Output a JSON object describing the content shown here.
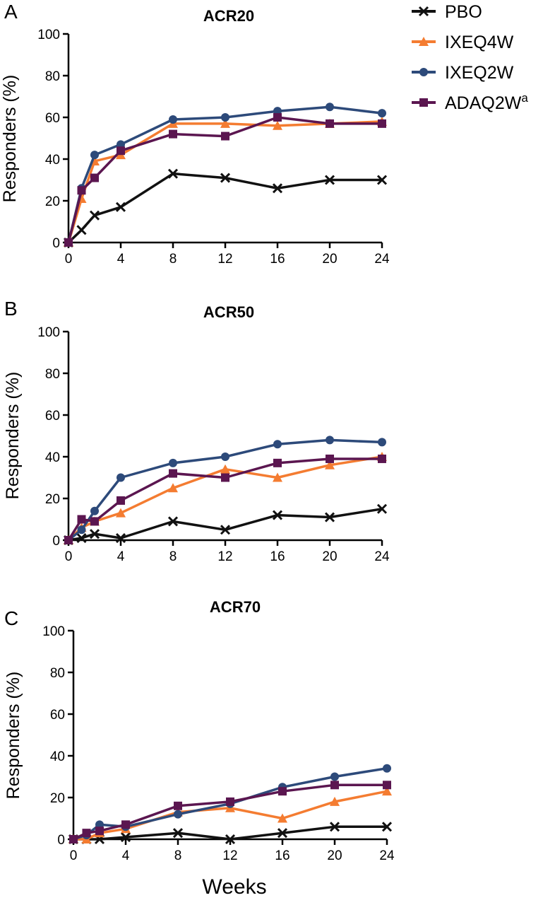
{
  "legend": {
    "items": [
      {
        "label": "PBO",
        "sup": "",
        "color": "#111111",
        "marker": "x"
      },
      {
        "label": "IXEQ4W",
        "sup": "",
        "color": "#f47c31",
        "marker": "triangle"
      },
      {
        "label": "IXEQ2W",
        "sup": "",
        "color": "#2d4a7a",
        "marker": "circle"
      },
      {
        "label": "ADAQ2W",
        "sup": "a",
        "color": "#5b1650",
        "marker": "square"
      }
    ]
  },
  "x_axis_label": "Weeks",
  "chart_data": [
    {
      "type": "line",
      "panel": "A",
      "title": "ACR20",
      "ylabel": "Responders (%)",
      "xlabel": "",
      "ylim": [
        0,
        100
      ],
      "yticks": [
        0,
        20,
        40,
        60,
        80,
        100
      ],
      "xlim": [
        0,
        24
      ],
      "xticks": [
        0,
        4,
        8,
        12,
        16,
        20,
        24
      ],
      "x": [
        0,
        1,
        2,
        4,
        8,
        12,
        16,
        20,
        24
      ],
      "series": [
        {
          "name": "PBO",
          "values": [
            0,
            6,
            13,
            17,
            33,
            31,
            26,
            30,
            30
          ]
        },
        {
          "name": "IXEQ4W",
          "values": [
            0,
            21,
            39,
            42,
            57,
            57,
            56,
            57,
            58
          ]
        },
        {
          "name": "IXEQ2W",
          "values": [
            0,
            26,
            42,
            47,
            59,
            60,
            63,
            65,
            62
          ]
        },
        {
          "name": "ADAQ2W",
          "values": [
            0,
            25,
            31,
            44,
            52,
            51,
            60,
            57,
            57
          ]
        }
      ]
    },
    {
      "type": "line",
      "panel": "B",
      "title": "ACR50",
      "ylabel": "Responders (%)",
      "xlabel": "",
      "ylim": [
        0,
        100
      ],
      "yticks": [
        0,
        20,
        40,
        60,
        80,
        100
      ],
      "xlim": [
        0,
        24
      ],
      "xticks": [
        0,
        4,
        8,
        12,
        16,
        20,
        24
      ],
      "x": [
        0,
        1,
        2,
        4,
        8,
        12,
        16,
        20,
        24
      ],
      "series": [
        {
          "name": "PBO",
          "values": [
            0,
            1,
            3,
            1,
            9,
            5,
            12,
            11,
            15
          ]
        },
        {
          "name": "IXEQ4W",
          "values": [
            0,
            6,
            9,
            13,
            25,
            34,
            30,
            36,
            40
          ]
        },
        {
          "name": "IXEQ2W",
          "values": [
            0,
            5,
            14,
            30,
            37,
            40,
            46,
            48,
            47
          ]
        },
        {
          "name": "ADAQ2W",
          "values": [
            0,
            10,
            9,
            19,
            32,
            30,
            37,
            39,
            39
          ]
        }
      ]
    },
    {
      "type": "line",
      "panel": "C",
      "title": "ACR70",
      "ylabel": "Responders (%)",
      "xlabel": "Weeks",
      "ylim": [
        0,
        100
      ],
      "yticks": [
        0,
        20,
        40,
        60,
        80,
        100
      ],
      "xlim": [
        0,
        24
      ],
      "xticks": [
        0,
        4,
        8,
        12,
        16,
        20,
        24
      ],
      "x": [
        0,
        1,
        2,
        4,
        8,
        12,
        16,
        20,
        24
      ],
      "series": [
        {
          "name": "PBO",
          "values": [
            0,
            0,
            0,
            1,
            3,
            0,
            3,
            6,
            6
          ]
        },
        {
          "name": "IXEQ4W",
          "values": [
            0,
            0,
            3,
            5,
            13,
            15,
            10,
            18,
            23
          ]
        },
        {
          "name": "IXEQ2W",
          "values": [
            0,
            2,
            7,
            6,
            12,
            17,
            25,
            30,
            34
          ]
        },
        {
          "name": "ADAQ2W",
          "values": [
            0,
            3,
            4,
            7,
            16,
            18,
            23,
            26,
            26
          ]
        }
      ]
    }
  ]
}
